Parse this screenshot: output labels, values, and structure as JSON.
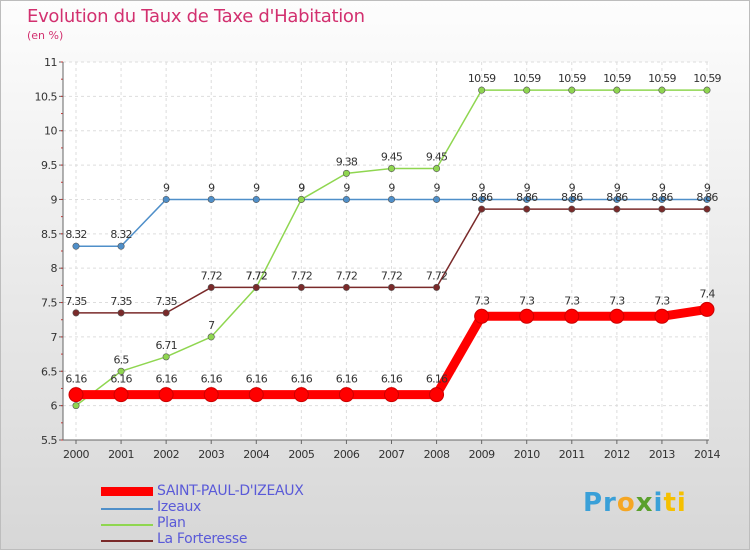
{
  "chart_data": {
    "type": "line",
    "title": "Evolution du Taux de Taxe d'Habitation",
    "unit_label": "(en %)",
    "x": [
      "2000",
      "2001",
      "2002",
      "2003",
      "2004",
      "2005",
      "2006",
      "2007",
      "2008",
      "2009",
      "2010",
      "2011",
      "2012",
      "2013",
      "2014"
    ],
    "ylim": [
      5.5,
      11
    ],
    "yticks": [
      5.5,
      6,
      6.5,
      7,
      7.5,
      8,
      8.5,
      9,
      9.5,
      10,
      10.5,
      11
    ],
    "ytick_labels": [
      "5.5",
      "6",
      "6.5",
      "7",
      "7.5",
      "8",
      "8.5",
      "9",
      "9.5",
      "10",
      "10.5",
      "11"
    ],
    "grid": true,
    "legend_position": "bottom-left",
    "series": [
      {
        "name": "Izeaux",
        "color": "#4f8fc9",
        "values": [
          8.32,
          8.32,
          9,
          9,
          9,
          9,
          9,
          9,
          9,
          9,
          9,
          9,
          9,
          9,
          9
        ],
        "labels": [
          "8.32",
          "8.32",
          "9",
          "9",
          "9",
          "9",
          "9",
          "9",
          "9",
          "9",
          "9",
          "9",
          "9",
          "9",
          "9"
        ]
      },
      {
        "name": "Plan",
        "color": "#8fd650",
        "values": [
          6,
          6.5,
          6.71,
          7,
          7.72,
          9,
          9.38,
          9.45,
          9.45,
          10.59,
          10.59,
          10.59,
          10.59,
          10.59,
          10.59
        ],
        "labels": [
          "6",
          "6.5",
          "6.71",
          "7",
          "7.72",
          "9",
          "9.38",
          "9.45",
          "9.45",
          "10.59",
          "10.59",
          "10.59",
          "10.59",
          "10.59",
          "10.59"
        ]
      },
      {
        "name": "La Forteresse",
        "color": "#7a2a2a",
        "values": [
          7.35,
          7.35,
          7.35,
          7.72,
          7.72,
          7.72,
          7.72,
          7.72,
          7.72,
          8.86,
          8.86,
          8.86,
          8.86,
          8.86,
          8.86
        ],
        "labels": [
          "7.35",
          "7.35",
          "7.35",
          "7.72",
          "7.72",
          "7.72",
          "7.72",
          "7.72",
          "7.72",
          "8.86",
          "8.86",
          "8.86",
          "8.86",
          "8.86",
          "8.86"
        ]
      },
      {
        "name": "SAINT-PAUL-D'IZEAUX",
        "color": "#ff0000",
        "values": [
          6.16,
          6.16,
          6.16,
          6.16,
          6.16,
          6.16,
          6.16,
          6.16,
          6.16,
          7.3,
          7.3,
          7.3,
          7.3,
          7.3,
          7.4
        ],
        "labels": [
          "6.16",
          "6.16",
          "6.16",
          "6.16",
          "6.16",
          "6.16",
          "6.16",
          "6.16",
          "6.16",
          "7.3",
          "7.3",
          "7.3",
          "7.3",
          "7.3",
          "7.4"
        ]
      }
    ],
    "legend_order": [
      "SAINT-PAUL-D'IZEAUX",
      "Izeaux",
      "Plan",
      "La Forteresse"
    ]
  },
  "branding": {
    "logo_parts": [
      "Pr",
      "o",
      "x",
      "i",
      "ti"
    ],
    "logo_colors": [
      "#3aa0d8",
      "#f5a623",
      "#5aa02c",
      "#3aa0d8",
      "#f5c000"
    ]
  }
}
